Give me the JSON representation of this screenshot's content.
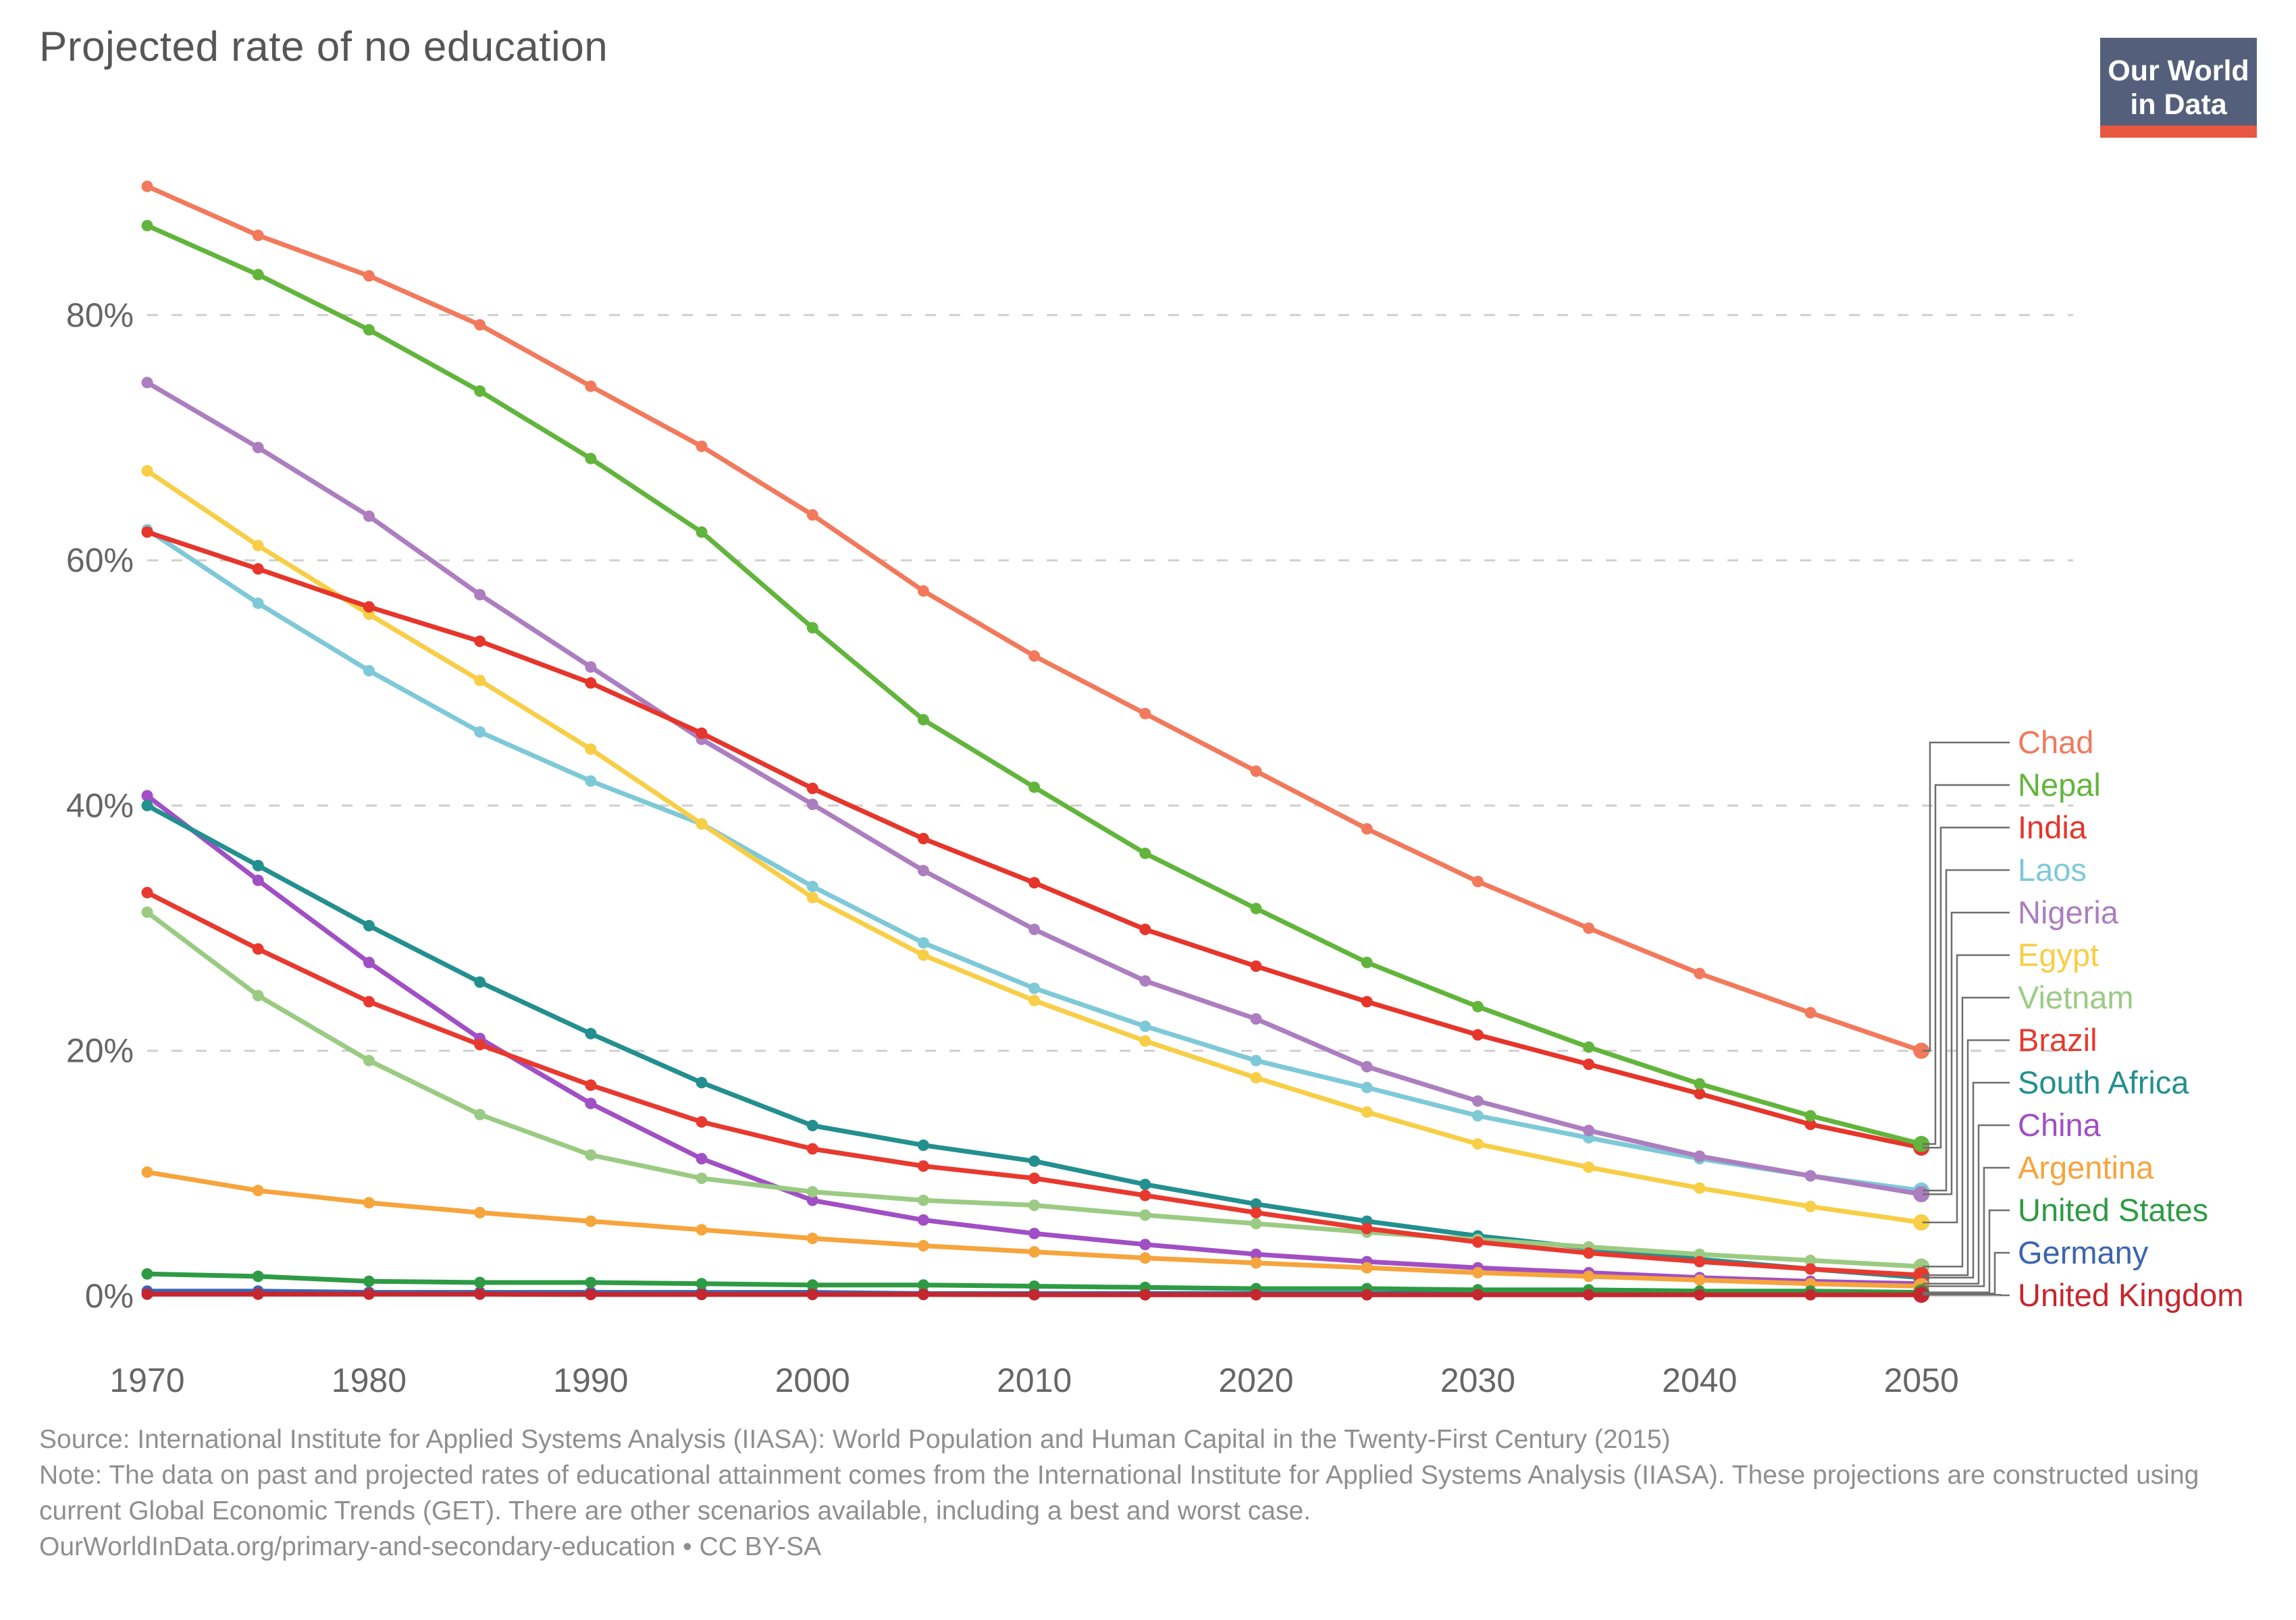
{
  "title": "Projected rate of no education",
  "logo": {
    "line1": "Our World",
    "line2": "in Data",
    "background": "#54607B",
    "bar_color": "#E8573F"
  },
  "footer": {
    "source_line": "Source: International Institute for Applied Systems Analysis (IIASA): World Population and Human Capital in the Twenty-First Century (2015)",
    "note_line": "Note: The data on past and projected rates of educational attainment comes from the International Institute for Applied Systems Analysis (IIASA). These projections are constructed using current Global Economic Trends (GET). There are other scenarios available, including a best and worst case.",
    "url_line": "OurWorldInData.org/primary-and-secondary-education • CC BY-SA"
  },
  "chart_data": {
    "type": "line",
    "title": "Projected rate of no education",
    "xlabel": "",
    "ylabel": "",
    "x": [
      1970,
      1975,
      1980,
      1985,
      1990,
      1995,
      2000,
      2005,
      2010,
      2015,
      2020,
      2025,
      2030,
      2035,
      2040,
      2045,
      2050
    ],
    "x_tick_labels": [
      "1970",
      "1980",
      "1990",
      "2000",
      "2010",
      "2020",
      "2030",
      "2040",
      "2050"
    ],
    "y_ticks": [
      0,
      20,
      40,
      60,
      80
    ],
    "y_tick_labels": [
      "0%",
      "20%",
      "40%",
      "60%",
      "80%"
    ],
    "ylim": [
      0,
      92
    ],
    "grid": true,
    "legend_position": "right",
    "series": [
      {
        "name": "Chad",
        "color": "#F2795C",
        "values": [
          90.5,
          86.5,
          83.2,
          79.2,
          74.2,
          69.3,
          63.7,
          57.5,
          52.2,
          47.5,
          42.8,
          38.1,
          33.8,
          30.0,
          26.3,
          23.1,
          20.0
        ]
      },
      {
        "name": "Nepal",
        "color": "#62B53C",
        "values": [
          87.3,
          83.3,
          78.8,
          73.8,
          68.3,
          62.3,
          54.5,
          47.0,
          41.5,
          36.1,
          31.6,
          27.2,
          23.6,
          20.3,
          17.3,
          14.7,
          12.4
        ]
      },
      {
        "name": "India",
        "color": "#E6352B",
        "values": [
          62.3,
          59.3,
          56.2,
          53.4,
          50.0,
          45.9,
          41.4,
          37.3,
          33.7,
          29.9,
          26.9,
          24.0,
          21.3,
          18.9,
          16.5,
          14.0,
          12.1
        ]
      },
      {
        "name": "Laos",
        "color": "#7EC9D8",
        "values": [
          62.5,
          56.5,
          51.0,
          46.0,
          42.0,
          38.5,
          33.4,
          28.8,
          25.1,
          22.0,
          19.2,
          17.0,
          14.7,
          12.9,
          11.2,
          9.8,
          8.6
        ]
      },
      {
        "name": "Nigeria",
        "color": "#AC7EC0",
        "values": [
          74.5,
          69.2,
          63.6,
          57.2,
          51.3,
          45.4,
          40.1,
          34.7,
          29.9,
          25.7,
          22.6,
          18.7,
          15.9,
          13.5,
          11.4,
          9.8,
          8.3
        ]
      },
      {
        "name": "Egypt",
        "color": "#F7CE46",
        "values": [
          67.3,
          61.2,
          55.6,
          50.2,
          44.6,
          38.5,
          32.5,
          27.8,
          24.1,
          20.8,
          17.8,
          15.0,
          12.4,
          10.5,
          8.8,
          7.3,
          6.0
        ]
      },
      {
        "name": "Vietnam",
        "color": "#9BCB83",
        "values": [
          31.3,
          24.5,
          19.2,
          14.8,
          11.5,
          9.6,
          8.5,
          7.8,
          7.4,
          6.6,
          5.9,
          5.2,
          4.6,
          4.0,
          3.4,
          2.9,
          2.4
        ]
      },
      {
        "name": "Brazil",
        "color": "#E8392F",
        "values": [
          32.9,
          28.3,
          24.0,
          20.5,
          17.2,
          14.2,
          12.0,
          10.6,
          9.6,
          8.2,
          6.8,
          5.5,
          4.4,
          3.5,
          2.8,
          2.2,
          1.7
        ]
      },
      {
        "name": "South Africa",
        "color": "#238F8F",
        "values": [
          40.0,
          35.1,
          30.2,
          25.6,
          21.4,
          17.4,
          13.9,
          12.3,
          11.0,
          9.1,
          7.5,
          6.1,
          4.9,
          3.9,
          3.0,
          2.2,
          1.5
        ]
      },
      {
        "name": "China",
        "color": "#A14FC4",
        "values": [
          40.8,
          33.9,
          27.2,
          21.0,
          15.7,
          11.2,
          7.8,
          6.2,
          5.1,
          4.2,
          3.4,
          2.8,
          2.3,
          1.9,
          1.5,
          1.2,
          1.0
        ]
      },
      {
        "name": "Argentina",
        "color": "#F6A43C",
        "values": [
          10.1,
          8.6,
          7.6,
          6.8,
          6.1,
          5.4,
          4.7,
          4.1,
          3.6,
          3.1,
          2.7,
          2.3,
          1.9,
          1.6,
          1.3,
          1.0,
          0.8
        ]
      },
      {
        "name": "United States",
        "color": "#2E9B44",
        "values": [
          1.8,
          1.6,
          1.2,
          1.1,
          1.1,
          1.0,
          0.9,
          0.9,
          0.8,
          0.7,
          0.6,
          0.6,
          0.5,
          0.5,
          0.4,
          0.4,
          0.3
        ]
      },
      {
        "name": "Germany",
        "color": "#3C64B1",
        "values": [
          0.4,
          0.4,
          0.3,
          0.3,
          0.3,
          0.3,
          0.3,
          0.2,
          0.2,
          0.2,
          0.2,
          0.2,
          0.2,
          0.2,
          0.2,
          0.2,
          0.2
        ]
      },
      {
        "name": "United Kingdom",
        "color": "#C6262D",
        "values": [
          0.15,
          0.15,
          0.15,
          0.15,
          0.12,
          0.12,
          0.12,
          0.12,
          0.1,
          0.1,
          0.1,
          0.1,
          0.1,
          0.1,
          0.1,
          0.1,
          0.1
        ]
      }
    ]
  },
  "layout_colors": {
    "gridline": "#cfcfcf",
    "zero_line": "#dddddd",
    "tick_text": "#666666",
    "connector": "#6e6e6e"
  }
}
